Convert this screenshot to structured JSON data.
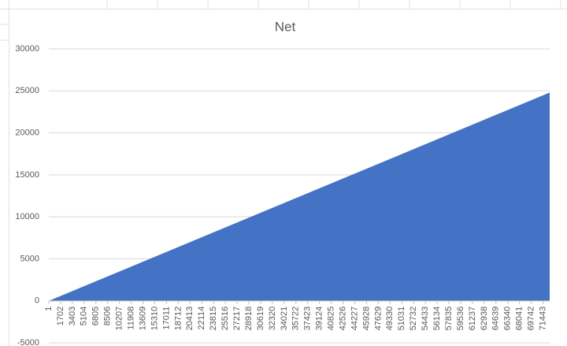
{
  "chart_data": {
    "type": "area",
    "title": "Net",
    "x": [
      1,
      72400
    ],
    "values": [
      0,
      24800
    ],
    "color": "#4472c4",
    "xlim": [
      1,
      72400
    ],
    "xticks": [
      1,
      1702,
      3403,
      5104,
      6805,
      8506,
      10207,
      11908,
      13609,
      15310,
      17011,
      18712,
      20413,
      22114,
      23815,
      25516,
      27217,
      28918,
      30619,
      32320,
      34021,
      35722,
      37423,
      39124,
      40825,
      42526,
      44227,
      45928,
      47629,
      49330,
      51031,
      52732,
      54433,
      56134,
      57835,
      59536,
      61237,
      62938,
      64639,
      66340,
      68041,
      69742,
      71443
    ],
    "ylim": [
      -5000,
      30000
    ],
    "yticks": [
      -5000,
      0,
      5000,
      10000,
      15000,
      20000,
      25000,
      30000
    ],
    "grid": true
  }
}
